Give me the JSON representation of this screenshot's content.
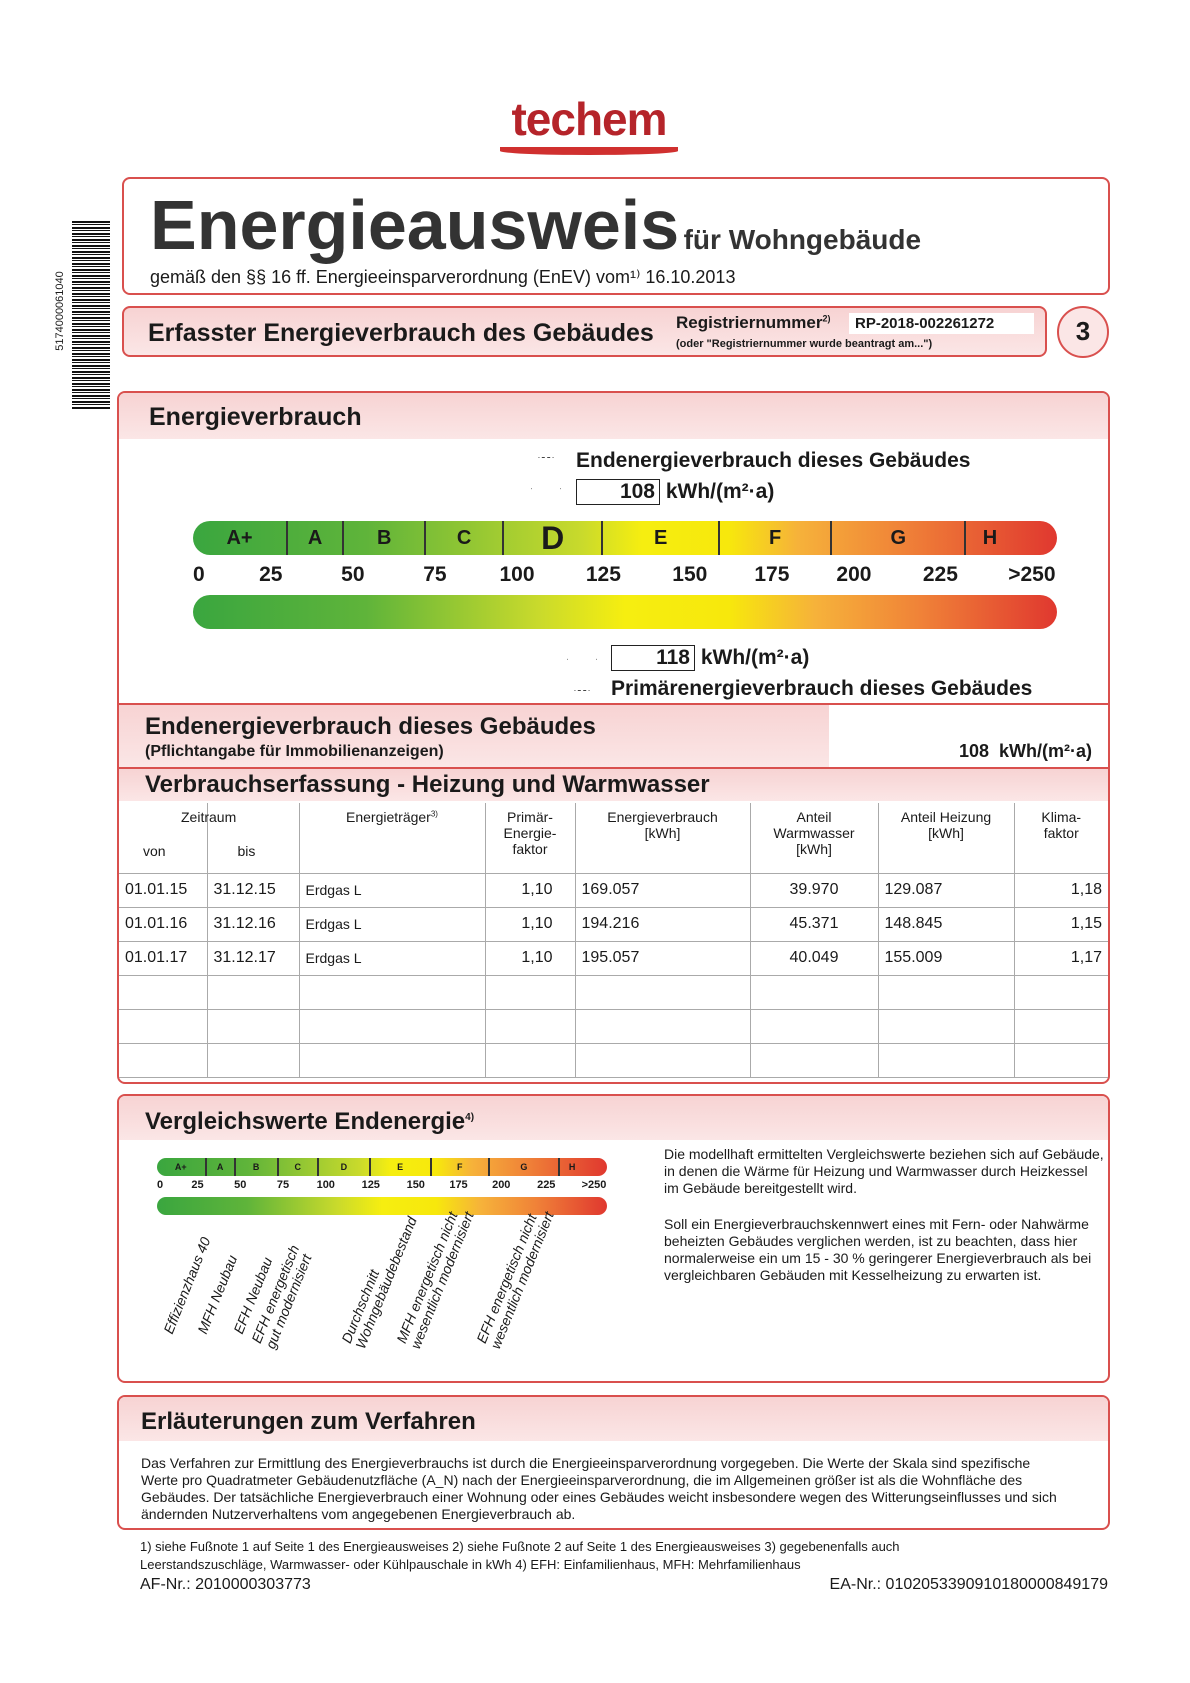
{
  "logo": "techem",
  "side": {
    "barcode_number": "5174000061040"
  },
  "header": {
    "title": "Energieausweis",
    "title_suffix": "für Wohngebäude",
    "subtitle": "gemäß den §§ 16 ff. Energieeinsparverordnung (EnEV) vom¹⁾ 16.10.2013"
  },
  "section_bar": {
    "title": "Erfasster Energieverbrauch des Gebäudes",
    "reg_label": "Registriernummer",
    "reg_sup": "2)",
    "reg_number": "RP-2018-002261272",
    "reg_note": "(oder \"Registriernummer wurde beantragt am...\")",
    "page_number": "3"
  },
  "energy": {
    "title": "Energieverbrauch",
    "end_label": "Endenergieverbrauch dieses Gebäudes",
    "end_value": "108",
    "unit": "kWh/(m²·a)",
    "primary_value": "118",
    "primary_label": "Primärenergieverbrauch dieses Gebäudes",
    "classes": [
      "A+",
      "A",
      "B",
      "C",
      "D",
      "E",
      "F",
      "G",
      "H"
    ],
    "active_class": "D",
    "ticks": [
      "0",
      "25",
      "50",
      "75",
      "100",
      "125",
      "150",
      "175",
      "200",
      "225",
      ">250"
    ]
  },
  "mandatory": {
    "title": "Endenergieverbrauch dieses Gebäudes",
    "note": "(Pflichtangabe für Immobilienanzeigen)",
    "value": "108",
    "unit": "kWh/(m²·a)"
  },
  "consumption": {
    "title": "Verbrauchserfassung - Heizung und Warmwasser",
    "headers": {
      "zeitraum": "Zeitraum",
      "von": "von",
      "bis": "bis",
      "traeger": "Energieträger",
      "traeger_sup": "3)",
      "primaer": "Primär-Energie-faktor",
      "verbrauch": "Energieverbrauch [kWh]",
      "warmwasser": "Anteil Warmwasser [kWh]",
      "heizung": "Anteil Heizung [kWh]",
      "klima": "Klima-faktor"
    },
    "rows": [
      [
        "01.01.15",
        "31.12.15",
        "Erdgas L",
        "1,10",
        "169.057",
        "39.970",
        "129.087",
        "1,18"
      ],
      [
        "01.01.16",
        "31.12.16",
        "Erdgas L",
        "1,10",
        "194.216",
        "45.371",
        "148.845",
        "1,15"
      ],
      [
        "01.01.17",
        "31.12.17",
        "Erdgas L",
        "1,10",
        "195.057",
        "40.049",
        "155.009",
        "1,17"
      ]
    ]
  },
  "comparison": {
    "title": "Vergleichswerte Endenergie",
    "title_sup": "4)",
    "labels": [
      "Effizienzhaus 40",
      "MFH Neubau",
      "EFH Neubau",
      "EFH energetisch gut modernisiert",
      "Durchschnitt Wohngebäudebestand",
      "MFH energetisch nicht wesentlich modernisiert",
      "EFH energetisch nicht wesentlich modernisiert"
    ],
    "text1": "Die modellhaft ermittelten Vergleichswerte beziehen sich auf Gebäude, in denen die Wärme für Heizung und Warmwasser durch Heizkessel im Gebäude bereitgestellt wird.",
    "text2": "Soll ein Energieverbrauchskennwert eines mit Fern- oder Nahwärme beheizten Gebäudes verglichen werden, ist zu beachten, dass hier normalerweise ein um 15 - 30 % geringerer Energieverbrauch als bei vergleichbaren Gebäuden mit Kesselheizung zu erwarten ist."
  },
  "explanation": {
    "title": "Erläuterungen zum Verfahren",
    "text": "Das Verfahren zur Ermittlung des Energieverbrauchs ist durch die Energieeinsparverordnung vorgegeben. Die Werte der Skala sind spezifische Werte pro Quadratmeter Gebäudenutzfläche (A_N) nach der Energieeinsparverordnung, die im Allgemeinen größer ist als die Wohnfläche des Gebäudes. Der tatsächliche Energieverbrauch einer Wohnung oder eines Gebäudes weicht insbesondere wegen des Witterungseinflusses und sich ändernden Nutzerverhaltens vom angegebenen Energieverbrauch ab."
  },
  "footer": {
    "footnotes": "1) siehe Fußnote 1 auf Seite 1 des Energieausweises  2) siehe Fußnote 2 auf Seite 1 des Energieausweises  3) gegebenenfalls auch Leerstandszuschläge, Warmwasser- oder Kühlpauschale in kWh  4) EFH: Einfamilienhaus, MFH: Mehrfamilienhaus",
    "af_nr": "AF-Nr.: 2010000303773",
    "ea_nr": "EA-Nr.: 0102053390910180000849179"
  }
}
